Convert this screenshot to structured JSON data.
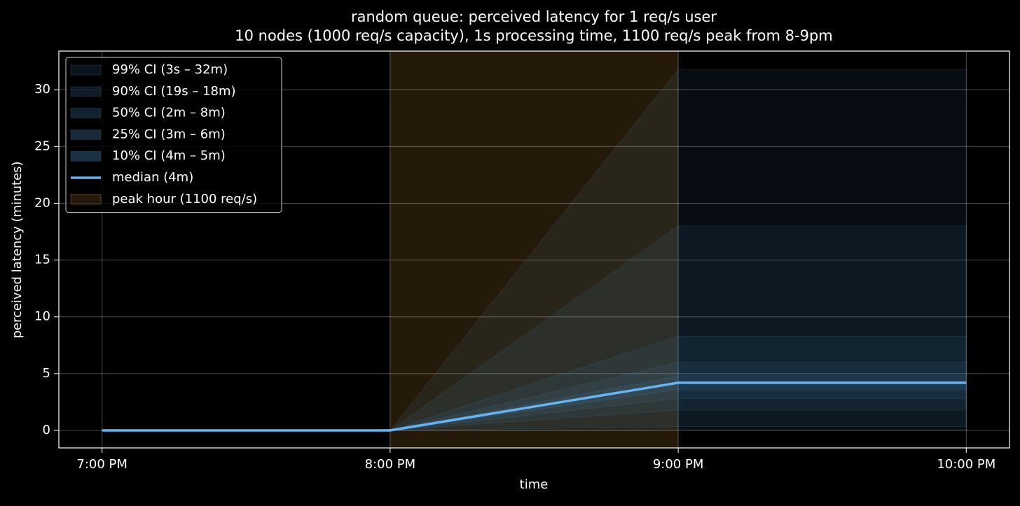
{
  "chart_data": {
    "type": "band-line",
    "title": "random queue: perceived latency for 1 req/s user",
    "subtitle": "10 nodes (1000 req/s capacity), 1s processing time, 1100 req/s peak from 8-9pm",
    "xlabel": "time",
    "ylabel": "perceived latency (minutes)",
    "x": [
      19,
      20,
      21,
      22
    ],
    "xlim": [
      18.85,
      22.15
    ],
    "xticks": [
      {
        "value": 19,
        "label": "7:00 PM"
      },
      {
        "value": 20,
        "label": "8:00 PM"
      },
      {
        "value": 21,
        "label": "9:00 PM"
      },
      {
        "value": 22,
        "label": "10:00 PM"
      }
    ],
    "ylim": [
      -1.54,
      33.4
    ],
    "yticks": [
      0,
      5,
      10,
      15,
      20,
      25,
      30
    ],
    "grid": true,
    "legend": "upper left",
    "span": {
      "name": "peak hour (1100 req/s)",
      "x": [
        20,
        21
      ],
      "color": "#f5b041"
    },
    "bands": [
      {
        "name": "99% CI (3s – 32m)",
        "color": "#5ab0f0",
        "lower": [
          0,
          0,
          0.05,
          0.05
        ],
        "upper": [
          0,
          0,
          31.8,
          31.8
        ]
      },
      {
        "name": "90% CI (19s – 18m)",
        "color": "#5ab0f0",
        "lower": [
          0,
          0,
          0.32,
          0.32
        ],
        "upper": [
          0,
          0,
          18,
          18
        ]
      },
      {
        "name": "50% CI (2m – 8m)",
        "color": "#5ab0f0",
        "lower": [
          0,
          0,
          1.8,
          1.8
        ],
        "upper": [
          0,
          0,
          8.3,
          8.3
        ]
      },
      {
        "name": "25% CI (3m – 6m)",
        "color": "#5ab0f0",
        "lower": [
          0,
          0,
          2.8,
          2.8
        ],
        "upper": [
          0,
          0,
          6,
          6
        ]
      },
      {
        "name": "10% CI (4m – 5m)",
        "color": "#5ab0f0",
        "lower": [
          0,
          0,
          3.6,
          3.6
        ],
        "upper": [
          0,
          0,
          4.8,
          4.8
        ]
      }
    ],
    "series": [
      {
        "name": "median (4m)",
        "color": "#64b5f6",
        "values": [
          0,
          0,
          4.2,
          4.2
        ]
      }
    ]
  }
}
